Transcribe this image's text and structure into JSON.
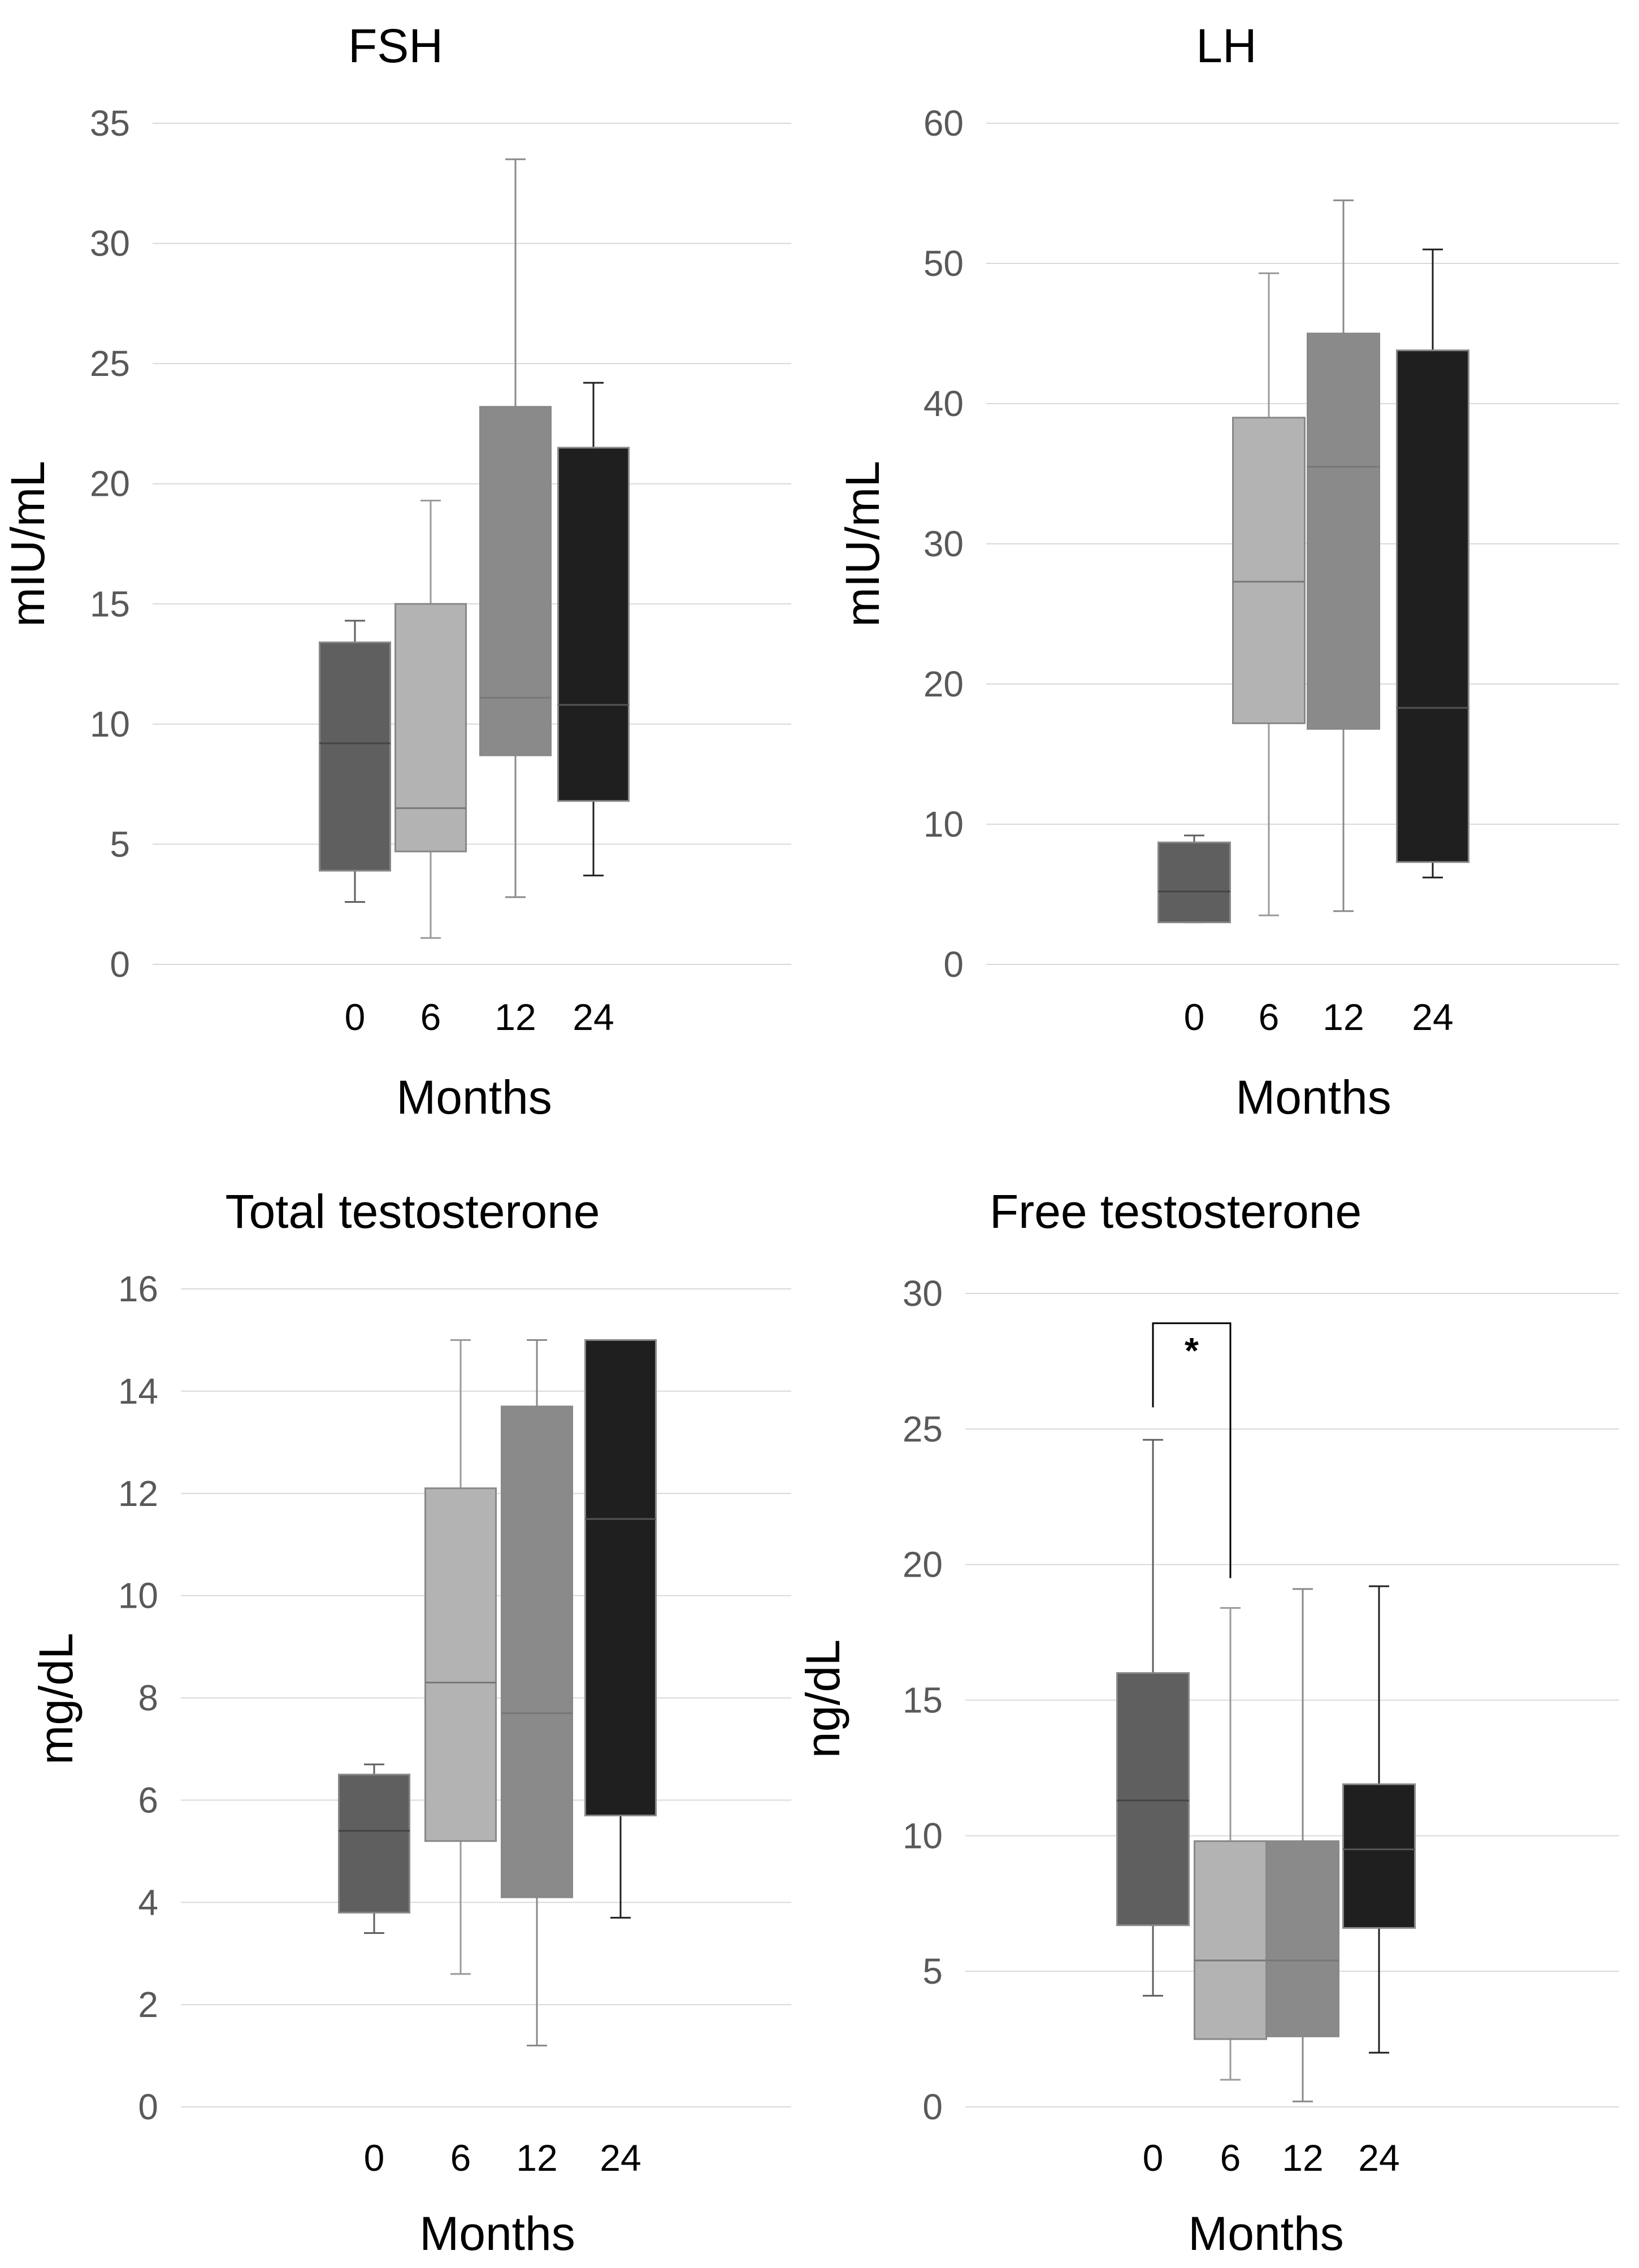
{
  "chart_data": [
    {
      "type": "box",
      "title": "FSH",
      "xlabel": "Months",
      "ylabel": "mIU/mL",
      "ylim": [
        0,
        35
      ],
      "yticks": [
        0,
        5,
        10,
        15,
        20,
        25,
        30,
        35
      ],
      "categories": [
        "0",
        "6",
        "12",
        "24"
      ],
      "boxes": [
        {
          "category": "0",
          "whisker_low": 2.6,
          "q1": 3.9,
          "median": 9.2,
          "q3": 13.4,
          "whisker_high": 14.3,
          "color": "#5f5f5f"
        },
        {
          "category": "6",
          "whisker_low": 1.1,
          "q1": 4.7,
          "median": 6.5,
          "q3": 15.0,
          "whisker_high": 19.3,
          "color": "#b3b3b3"
        },
        {
          "category": "12",
          "whisker_low": 2.8,
          "q1": 8.7,
          "median": 11.1,
          "q3": 23.2,
          "whisker_high": 33.5,
          "color": "#8a8a8a"
        },
        {
          "category": "24",
          "whisker_low": 3.7,
          "q1": 6.8,
          "median": 10.8,
          "q3": 21.5,
          "whisker_high": 24.2,
          "color": "#1f1f1f"
        }
      ]
    },
    {
      "type": "box",
      "title": "LH",
      "xlabel": "Months",
      "ylabel": "mIU/mL",
      "ylim": [
        0,
        60
      ],
      "yticks": [
        0,
        10,
        20,
        30,
        40,
        50,
        60
      ],
      "categories": [
        "0",
        "6",
        "12",
        "24"
      ],
      "boxes": [
        {
          "category": "0",
          "whisker_low": 3.0,
          "q1": 3.0,
          "median": 5.2,
          "q3": 8.7,
          "whisker_high": 9.2,
          "color": "#5f5f5f"
        },
        {
          "category": "6",
          "whisker_low": 3.5,
          "q1": 17.2,
          "median": 27.3,
          "q3": 39.0,
          "whisker_high": 49.3,
          "color": "#b3b3b3"
        },
        {
          "category": "12",
          "whisker_low": 3.8,
          "q1": 16.8,
          "median": 35.5,
          "q3": 45.0,
          "whisker_high": 54.5,
          "color": "#8a8a8a"
        },
        {
          "category": "24",
          "whisker_low": 6.2,
          "q1": 7.3,
          "median": 18.3,
          "q3": 43.8,
          "whisker_high": 51.0,
          "color": "#1f1f1f"
        }
      ]
    },
    {
      "type": "box",
      "title": "Total testosterone",
      "xlabel": "Months",
      "ylabel": "mg/dL",
      "ylim": [
        0,
        16
      ],
      "yticks": [
        0,
        2,
        4,
        6,
        8,
        10,
        12,
        14,
        16
      ],
      "categories": [
        "0",
        "6",
        "12",
        "24"
      ],
      "boxes": [
        {
          "category": "0",
          "whisker_low": 3.4,
          "q1": 3.8,
          "median": 5.4,
          "q3": 6.5,
          "whisker_high": 6.7,
          "color": "#5f5f5f"
        },
        {
          "category": "6",
          "whisker_low": 2.6,
          "q1": 5.2,
          "median": 8.3,
          "q3": 12.1,
          "whisker_high": 15.0,
          "color": "#b3b3b3"
        },
        {
          "category": "12",
          "whisker_low": 1.2,
          "q1": 4.1,
          "median": 7.7,
          "q3": 13.7,
          "whisker_high": 15.0,
          "color": "#8a8a8a"
        },
        {
          "category": "24",
          "whisker_low": 3.7,
          "q1": 5.7,
          "median": 11.5,
          "q3": 15.0,
          "whisker_high": 15.0,
          "color": "#1f1f1f"
        }
      ]
    },
    {
      "type": "box",
      "title": "Free testosterone",
      "xlabel": "Months",
      "ylabel": "ng/dL",
      "ylim": [
        0,
        30
      ],
      "yticks": [
        0,
        5,
        10,
        15,
        20,
        25,
        30
      ],
      "categories": [
        "0",
        "6",
        "12",
        "24"
      ],
      "boxes": [
        {
          "category": "0",
          "whisker_low": 4.1,
          "q1": 6.7,
          "median": 11.3,
          "q3": 16.0,
          "whisker_high": 24.6,
          "color": "#5f5f5f"
        },
        {
          "category": "6",
          "whisker_low": 1.0,
          "q1": 2.5,
          "median": 5.4,
          "q3": 9.8,
          "whisker_high": 18.4,
          "color": "#b3b3b3"
        },
        {
          "category": "12",
          "whisker_low": 0.2,
          "q1": 2.6,
          "median": 5.4,
          "q3": 9.8,
          "whisker_high": 19.1,
          "color": "#8a8a8a"
        },
        {
          "category": "24",
          "whisker_low": 2.0,
          "q1": 6.6,
          "median": 9.5,
          "q3": 11.9,
          "whisker_high": 19.2,
          "color": "#1f1f1f"
        }
      ],
      "annotation": {
        "text": "*",
        "from_category": "0",
        "to_category": "6",
        "bracket_y": 28.9,
        "left_end_y": 25.8,
        "right_end_y": 19.5
      }
    }
  ]
}
